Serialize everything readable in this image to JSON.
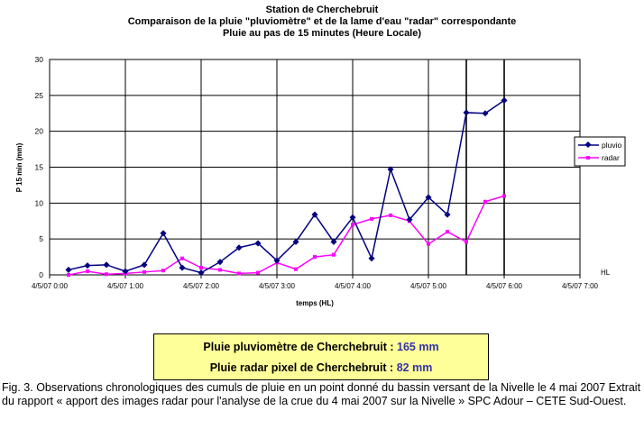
{
  "chart_data": {
    "type": "line",
    "title_lines": [
      "Station de Cherchebruit",
      "Comparaison de la pluie \"pluviomètre\" et de la lame d'eau \"radar\" correspondante",
      "Pluie au pas de 15 minutes (Heure Locale)"
    ],
    "xlabel": "temps (HL)",
    "ylabel": "P 15 min (mm)",
    "x_unit_label": "HL",
    "ylim": [
      0,
      30
    ],
    "yticks": [
      0,
      5,
      10,
      15,
      20,
      25,
      30
    ],
    "xlim_hours": [
      0,
      7
    ],
    "xticks": [
      {
        "h": 0,
        "label": "4/5/07 0:00"
      },
      {
        "h": 1,
        "label": "4/5/07 1:00"
      },
      {
        "h": 2,
        "label": "4/5/07 2:00"
      },
      {
        "h": 3,
        "label": "4/5/07 3:00"
      },
      {
        "h": 4,
        "label": "4/5/07 4:00"
      },
      {
        "h": 5,
        "label": "4/5/07 5:00"
      },
      {
        "h": 6,
        "label": "4/5/07 6:00"
      },
      {
        "h": 7,
        "label": "4/5/07 7:00"
      }
    ],
    "vertical_markers_hours": [
      5.5,
      6.0
    ],
    "grid": true,
    "legend_position": "right",
    "x_hours": [
      0.25,
      0.5,
      0.75,
      1.0,
      1.25,
      1.5,
      1.75,
      2.0,
      2.25,
      2.5,
      2.75,
      3.0,
      3.25,
      3.5,
      3.75,
      4.0,
      4.25,
      4.5,
      4.75,
      5.0,
      5.25,
      5.5,
      5.75,
      6.0
    ],
    "series": [
      {
        "name": "pluvio",
        "color": "#000080",
        "marker": "diamond",
        "values": [
          0.7,
          1.3,
          1.4,
          0.5,
          1.4,
          5.8,
          1.0,
          0.3,
          1.8,
          3.8,
          4.4,
          2.0,
          4.6,
          8.4,
          4.6,
          8.0,
          2.3,
          14.7,
          7.7,
          10.8,
          8.4,
          22.6,
          22.5,
          24.3
        ]
      },
      {
        "name": "radar",
        "color": "#ff00ff",
        "marker": "square",
        "values": [
          0.0,
          0.5,
          0.1,
          0.2,
          0.4,
          0.6,
          2.3,
          1.0,
          0.7,
          0.2,
          0.3,
          1.7,
          0.8,
          2.5,
          2.8,
          7.0,
          7.8,
          8.3,
          7.5,
          4.3,
          6.0,
          4.6,
          10.2,
          11.0
        ]
      }
    ]
  },
  "summary": {
    "pluvio_label": "Pluie pluviomètre de Cherchebruit : ",
    "pluvio_value": "165 mm",
    "radar_label": "Pluie radar pixel de Cherchebruit : ",
    "radar_value": "82 mm"
  },
  "caption": "Fig. 3. Observations chronologiques des cumuls de pluie en un point donné du bassin versant de la Nivelle le 4 mai 2007 Extrait du rapport « apport des images radar pour l'analyse de la crue du 4 mai 2007 sur la Nivelle » SPC Adour – CETE Sud-Ouest."
}
